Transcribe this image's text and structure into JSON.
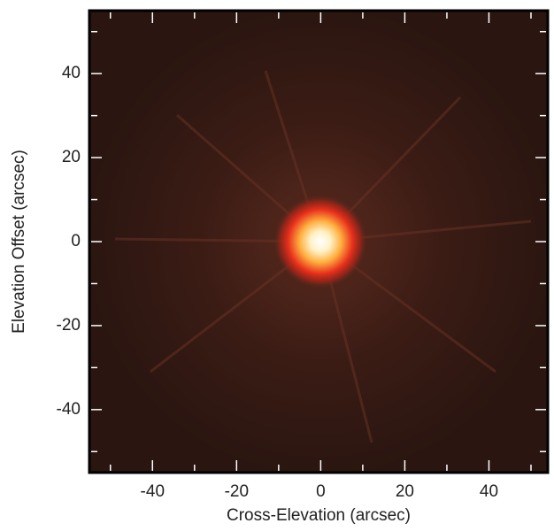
{
  "chart_data": {
    "type": "image",
    "xlabel": "Cross-Elevation (arcsec)",
    "ylabel": "Elevation Offset (arcsec)",
    "xlim": [
      -55,
      54
    ],
    "ylim": [
      -55,
      55
    ],
    "xticks": [
      -40,
      -20,
      0,
      20,
      40
    ],
    "yticks": [
      -40,
      -20,
      0,
      20,
      40
    ]
  }
}
